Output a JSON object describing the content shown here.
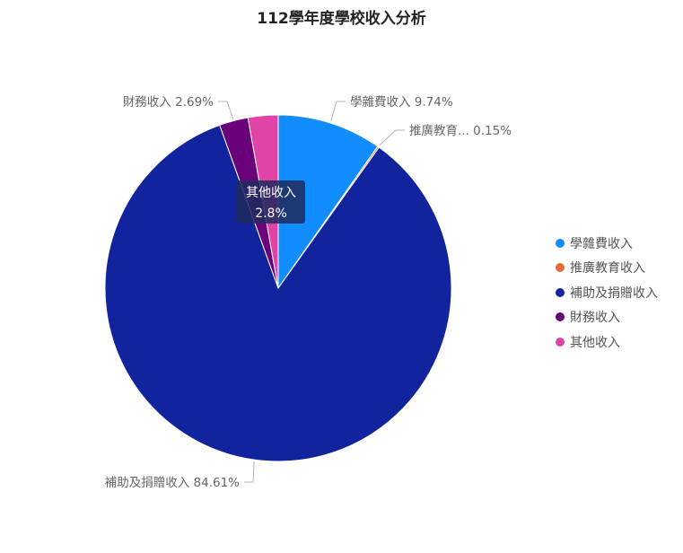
{
  "chart_data": {
    "type": "pie",
    "title": "112學年度學校收入分析",
    "legend_position": "right",
    "slices": [
      {
        "label": "學雜費收入",
        "data_label": "學雜費收入 9.74%",
        "value": 9.74,
        "color": "#118dff"
      },
      {
        "label": "推廣教育收入",
        "data_label": "推廣教育... 0.15%",
        "value": 0.15,
        "color": "#e66c37"
      },
      {
        "label": "補助及捐贈收入",
        "data_label": "補助及捐贈收入 84.61%",
        "value": 84.61,
        "color": "#12239e"
      },
      {
        "label": "財務收入",
        "data_label": "財務收入 2.69%",
        "value": 2.69,
        "color": "#6b007b"
      },
      {
        "label": "其他收入",
        "data_label": "",
        "value": 2.8,
        "color": "#e044a7"
      }
    ],
    "tooltip": {
      "label": "其他收入",
      "value": "2.8%"
    }
  }
}
